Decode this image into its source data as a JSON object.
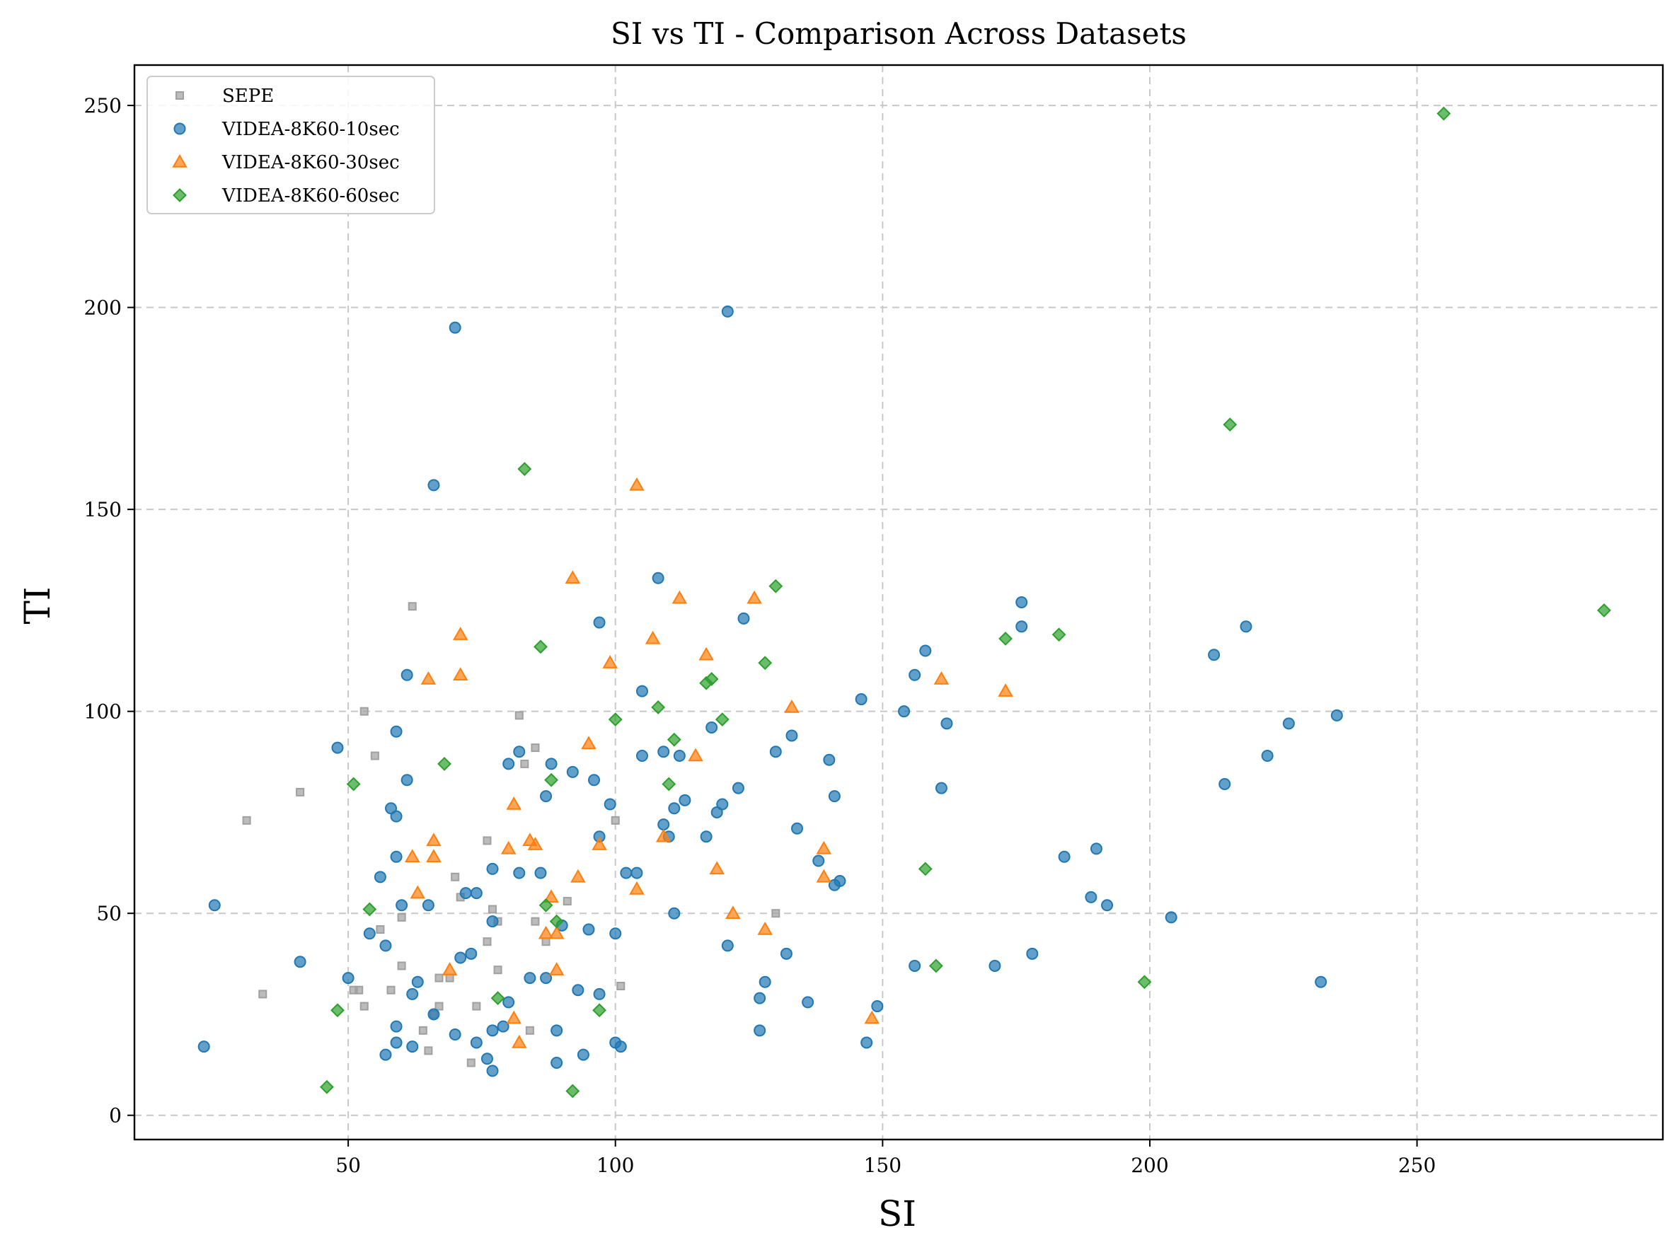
{
  "chart_data": {
    "type": "scatter",
    "title": "SI vs TI - Comparison Across Datasets",
    "xlabel": "SI",
    "ylabel": "TI",
    "xlim": [
      10,
      296
    ],
    "ylim": [
      -6,
      260
    ],
    "xticks": [
      50,
      100,
      150,
      200,
      250
    ],
    "yticks": [
      0,
      50,
      100,
      150,
      200,
      250
    ],
    "grid": true,
    "legend_position": "top-left",
    "series": [
      {
        "name": "SEPE",
        "marker": "square",
        "color": "#a0a0a0",
        "points": [
          [
            31,
            73
          ],
          [
            34,
            30
          ],
          [
            41,
            80
          ],
          [
            51,
            31
          ],
          [
            52,
            31
          ],
          [
            53,
            27
          ],
          [
            53,
            100
          ],
          [
            55,
            89
          ],
          [
            56,
            46
          ],
          [
            58,
            31
          ],
          [
            60,
            37
          ],
          [
            60,
            49
          ],
          [
            62,
            126
          ],
          [
            64,
            21
          ],
          [
            65,
            16
          ],
          [
            66,
            25
          ],
          [
            67,
            27
          ],
          [
            67,
            34
          ],
          [
            69,
            34
          ],
          [
            70,
            59
          ],
          [
            71,
            54
          ],
          [
            73,
            13
          ],
          [
            74,
            27
          ],
          [
            76,
            43
          ],
          [
            76,
            68
          ],
          [
            77,
            51
          ],
          [
            78,
            36
          ],
          [
            78,
            48
          ],
          [
            82,
            99
          ],
          [
            83,
            87
          ],
          [
            84,
            21
          ],
          [
            85,
            48
          ],
          [
            85,
            91
          ],
          [
            87,
            43
          ],
          [
            91,
            53
          ],
          [
            100,
            73
          ],
          [
            101,
            32
          ],
          [
            130,
            50
          ]
        ]
      },
      {
        "name": "VIDEA-8K60-10sec",
        "marker": "circle",
        "color": "#1f77b4",
        "points": [
          [
            23,
            17
          ],
          [
            25,
            52
          ],
          [
            41,
            38
          ],
          [
            48,
            91
          ],
          [
            50,
            34
          ],
          [
            54,
            45
          ],
          [
            56,
            59
          ],
          [
            57,
            42
          ],
          [
            57,
            15
          ],
          [
            58,
            76
          ],
          [
            59,
            95
          ],
          [
            59,
            74
          ],
          [
            59,
            64
          ],
          [
            59,
            22
          ],
          [
            59,
            18
          ],
          [
            60,
            52
          ],
          [
            61,
            109
          ],
          [
            61,
            83
          ],
          [
            62,
            17
          ],
          [
            62,
            30
          ],
          [
            63,
            33
          ],
          [
            65,
            52
          ],
          [
            66,
            156
          ],
          [
            66,
            25
          ],
          [
            70,
            195
          ],
          [
            70,
            20
          ],
          [
            71,
            39
          ],
          [
            72,
            55
          ],
          [
            73,
            40
          ],
          [
            74,
            55
          ],
          [
            74,
            18
          ],
          [
            76,
            14
          ],
          [
            77,
            48
          ],
          [
            77,
            61
          ],
          [
            77,
            11
          ],
          [
            77,
            21
          ],
          [
            79,
            22
          ],
          [
            80,
            28
          ],
          [
            80,
            87
          ],
          [
            82,
            60
          ],
          [
            82,
            90
          ],
          [
            84,
            34
          ],
          [
            86,
            60
          ],
          [
            87,
            79
          ],
          [
            87,
            34
          ],
          [
            88,
            87
          ],
          [
            89,
            13
          ],
          [
            89,
            21
          ],
          [
            90,
            47
          ],
          [
            92,
            85
          ],
          [
            93,
            31
          ],
          [
            94,
            15
          ],
          [
            95,
            46
          ],
          [
            96,
            83
          ],
          [
            97,
            122
          ],
          [
            97,
            30
          ],
          [
            97,
            69
          ],
          [
            99,
            77
          ],
          [
            100,
            45
          ],
          [
            100,
            18
          ],
          [
            101,
            17
          ],
          [
            102,
            60
          ],
          [
            104,
            60
          ],
          [
            105,
            105
          ],
          [
            105,
            89
          ],
          [
            108,
            133
          ],
          [
            109,
            90
          ],
          [
            109,
            72
          ],
          [
            110,
            69
          ],
          [
            111,
            76
          ],
          [
            111,
            50
          ],
          [
            112,
            89
          ],
          [
            113,
            78
          ],
          [
            117,
            69
          ],
          [
            118,
            96
          ],
          [
            119,
            75
          ],
          [
            120,
            77
          ],
          [
            121,
            199
          ],
          [
            121,
            42
          ],
          [
            123,
            81
          ],
          [
            124,
            123
          ],
          [
            127,
            29
          ],
          [
            127,
            21
          ],
          [
            128,
            33
          ],
          [
            130,
            90
          ],
          [
            132,
            40
          ],
          [
            133,
            94
          ],
          [
            134,
            71
          ],
          [
            136,
            28
          ],
          [
            138,
            63
          ],
          [
            140,
            88
          ],
          [
            141,
            57
          ],
          [
            141,
            79
          ],
          [
            142,
            58
          ],
          [
            146,
            103
          ],
          [
            147,
            18
          ],
          [
            149,
            27
          ],
          [
            154,
            100
          ],
          [
            156,
            109
          ],
          [
            156,
            37
          ],
          [
            158,
            115
          ],
          [
            161,
            81
          ],
          [
            162,
            97
          ],
          [
            171,
            37
          ],
          [
            176,
            127
          ],
          [
            176,
            121
          ],
          [
            178,
            40
          ],
          [
            184,
            64
          ],
          [
            189,
            54
          ],
          [
            190,
            66
          ],
          [
            192,
            52
          ],
          [
            204,
            49
          ],
          [
            212,
            114
          ],
          [
            214,
            82
          ],
          [
            218,
            121
          ],
          [
            222,
            89
          ],
          [
            226,
            97
          ],
          [
            232,
            33
          ],
          [
            235,
            99
          ]
        ]
      },
      {
        "name": "VIDEA-8K60-30sec",
        "marker": "triangle",
        "color": "#ff7f0e",
        "points": [
          [
            62,
            64
          ],
          [
            63,
            55
          ],
          [
            65,
            108
          ],
          [
            66,
            68
          ],
          [
            66,
            64
          ],
          [
            69,
            36
          ],
          [
            71,
            119
          ],
          [
            71,
            109
          ],
          [
            80,
            66
          ],
          [
            81,
            24
          ],
          [
            81,
            77
          ],
          [
            82,
            18
          ],
          [
            84,
            68
          ],
          [
            85,
            67
          ],
          [
            87,
            45
          ],
          [
            88,
            54
          ],
          [
            89,
            45
          ],
          [
            89,
            36
          ],
          [
            92,
            133
          ],
          [
            93,
            59
          ],
          [
            95,
            92
          ],
          [
            97,
            67
          ],
          [
            99,
            112
          ],
          [
            104,
            156
          ],
          [
            104,
            56
          ],
          [
            107,
            118
          ],
          [
            109,
            69
          ],
          [
            112,
            128
          ],
          [
            115,
            89
          ],
          [
            117,
            114
          ],
          [
            119,
            61
          ],
          [
            122,
            50
          ],
          [
            126,
            128
          ],
          [
            128,
            46
          ],
          [
            133,
            101
          ],
          [
            139,
            66
          ],
          [
            139,
            59
          ],
          [
            148,
            24
          ],
          [
            161,
            108
          ],
          [
            173,
            105
          ]
        ]
      },
      {
        "name": "VIDEA-8K60-60sec",
        "marker": "diamond",
        "color": "#2ca02c",
        "points": [
          [
            46,
            7
          ],
          [
            48,
            26
          ],
          [
            51,
            82
          ],
          [
            54,
            51
          ],
          [
            68,
            87
          ],
          [
            78,
            29
          ],
          [
            83,
            160
          ],
          [
            86,
            116
          ],
          [
            87,
            52
          ],
          [
            88,
            83
          ],
          [
            89,
            48
          ],
          [
            92,
            6
          ],
          [
            97,
            26
          ],
          [
            100,
            98
          ],
          [
            108,
            101
          ],
          [
            110,
            82
          ],
          [
            111,
            93
          ],
          [
            117,
            107
          ],
          [
            118,
            108
          ],
          [
            120,
            98
          ],
          [
            128,
            112
          ],
          [
            130,
            131
          ],
          [
            158,
            61
          ],
          [
            160,
            37
          ],
          [
            173,
            118
          ],
          [
            183,
            119
          ],
          [
            199,
            33
          ],
          [
            215,
            171
          ],
          [
            255,
            248
          ],
          [
            285,
            125
          ]
        ]
      }
    ]
  }
}
